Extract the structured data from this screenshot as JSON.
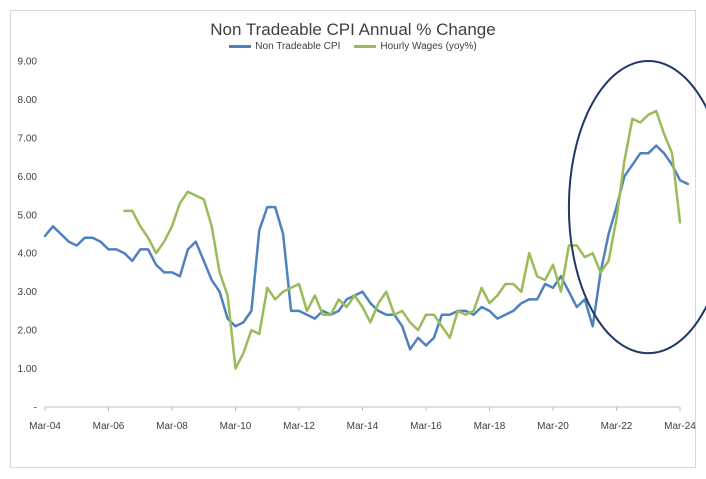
{
  "chart_data": {
    "type": "line",
    "title": "Non Tradeable CPI Annual % Change",
    "xlabel": "",
    "ylabel": "",
    "ylim": [
      0,
      9
    ],
    "grid": false,
    "legend_position": "top-center",
    "y_ticks": [
      "-",
      "1.00",
      "2.00",
      "3.00",
      "4.00",
      "5.00",
      "6.00",
      "7.00",
      "8.00",
      "9.00"
    ],
    "x_ticks": [
      "Mar-04",
      "Mar-06",
      "Mar-08",
      "Mar-10",
      "Mar-12",
      "Mar-14",
      "Mar-16",
      "Mar-18",
      "Mar-20",
      "Mar-22",
      "Mar-24"
    ],
    "x_range": [
      "2004-03",
      "2024-03"
    ],
    "series": [
      {
        "name": "Non Tradeable CPI",
        "color": "#4f81bd",
        "points": [
          [
            "2004-03",
            4.45
          ],
          [
            "2004-06",
            4.7
          ],
          [
            "2004-09",
            4.5
          ],
          [
            "2004-12",
            4.3
          ],
          [
            "2005-03",
            4.2
          ],
          [
            "2005-06",
            4.4
          ],
          [
            "2005-09",
            4.4
          ],
          [
            "2005-12",
            4.3
          ],
          [
            "2006-03",
            4.1
          ],
          [
            "2006-06",
            4.1
          ],
          [
            "2006-09",
            4.0
          ],
          [
            "2006-12",
            3.8
          ],
          [
            "2007-03",
            4.1
          ],
          [
            "2007-06",
            4.1
          ],
          [
            "2007-09",
            3.7
          ],
          [
            "2007-12",
            3.5
          ],
          [
            "2008-03",
            3.5
          ],
          [
            "2008-06",
            3.4
          ],
          [
            "2008-09",
            4.1
          ],
          [
            "2008-12",
            4.3
          ],
          [
            "2009-03",
            3.8
          ],
          [
            "2009-06",
            3.3
          ],
          [
            "2009-09",
            3.0
          ],
          [
            "2009-12",
            2.3
          ],
          [
            "2010-03",
            2.1
          ],
          [
            "2010-06",
            2.2
          ],
          [
            "2010-09",
            2.5
          ],
          [
            "2010-12",
            4.6
          ],
          [
            "2011-03",
            5.2
          ],
          [
            "2011-06",
            5.2
          ],
          [
            "2011-09",
            4.5
          ],
          [
            "2011-12",
            2.5
          ],
          [
            "2012-03",
            2.5
          ],
          [
            "2012-06",
            2.4
          ],
          [
            "2012-09",
            2.3
          ],
          [
            "2012-12",
            2.5
          ],
          [
            "2013-03",
            2.4
          ],
          [
            "2013-06",
            2.5
          ],
          [
            "2013-09",
            2.8
          ],
          [
            "2013-12",
            2.9
          ],
          [
            "2014-03",
            3.0
          ],
          [
            "2014-06",
            2.7
          ],
          [
            "2014-09",
            2.5
          ],
          [
            "2014-12",
            2.4
          ],
          [
            "2015-03",
            2.4
          ],
          [
            "2015-06",
            2.1
          ],
          [
            "2015-09",
            1.5
          ],
          [
            "2015-12",
            1.8
          ],
          [
            "2016-03",
            1.6
          ],
          [
            "2016-06",
            1.8
          ],
          [
            "2016-09",
            2.4
          ],
          [
            "2016-12",
            2.4
          ],
          [
            "2017-03",
            2.5
          ],
          [
            "2017-06",
            2.5
          ],
          [
            "2017-09",
            2.4
          ],
          [
            "2017-12",
            2.6
          ],
          [
            "2018-03",
            2.5
          ],
          [
            "2018-06",
            2.3
          ],
          [
            "2018-09",
            2.4
          ],
          [
            "2018-12",
            2.5
          ],
          [
            "2019-03",
            2.7
          ],
          [
            "2019-06",
            2.8
          ],
          [
            "2019-09",
            2.8
          ],
          [
            "2019-12",
            3.2
          ],
          [
            "2020-03",
            3.1
          ],
          [
            "2020-06",
            3.4
          ],
          [
            "2020-09",
            3.0
          ],
          [
            "2020-12",
            2.6
          ],
          [
            "2021-03",
            2.8
          ],
          [
            "2021-06",
            2.1
          ],
          [
            "2021-09",
            3.5
          ],
          [
            "2021-12",
            4.5
          ],
          [
            "2022-03",
            5.2
          ],
          [
            "2022-06",
            6.0
          ],
          [
            "2022-09",
            6.3
          ],
          [
            "2022-12",
            6.6
          ],
          [
            "2023-03",
            6.6
          ],
          [
            "2023-06",
            6.8
          ],
          [
            "2023-09",
            6.6
          ],
          [
            "2023-12",
            6.3
          ],
          [
            "2024-03",
            5.9
          ],
          [
            "2024-06",
            5.8
          ]
        ]
      },
      {
        "name": "Hourly Wages (yoy%)",
        "color": "#9bbb59",
        "points": [
          [
            "2006-09",
            5.1
          ],
          [
            "2006-12",
            5.1
          ],
          [
            "2007-03",
            4.7
          ],
          [
            "2007-06",
            4.4
          ],
          [
            "2007-09",
            4.0
          ],
          [
            "2007-12",
            4.3
          ],
          [
            "2008-03",
            4.7
          ],
          [
            "2008-06",
            5.3
          ],
          [
            "2008-09",
            5.6
          ],
          [
            "2008-12",
            5.5
          ],
          [
            "2009-03",
            5.4
          ],
          [
            "2009-06",
            4.7
          ],
          [
            "2009-09",
            3.5
          ],
          [
            "2009-12",
            2.9
          ],
          [
            "2010-03",
            1.0
          ],
          [
            "2010-06",
            1.4
          ],
          [
            "2010-09",
            2.0
          ],
          [
            "2010-12",
            1.9
          ],
          [
            "2011-03",
            3.1
          ],
          [
            "2011-06",
            2.8
          ],
          [
            "2011-09",
            3.0
          ],
          [
            "2011-12",
            3.1
          ],
          [
            "2012-03",
            3.2
          ],
          [
            "2012-06",
            2.5
          ],
          [
            "2012-09",
            2.9
          ],
          [
            "2012-12",
            2.4
          ],
          [
            "2013-03",
            2.4
          ],
          [
            "2013-06",
            2.8
          ],
          [
            "2013-09",
            2.6
          ],
          [
            "2013-12",
            2.9
          ],
          [
            "2014-03",
            2.6
          ],
          [
            "2014-06",
            2.2
          ],
          [
            "2014-09",
            2.7
          ],
          [
            "2014-12",
            3.0
          ],
          [
            "2015-03",
            2.4
          ],
          [
            "2015-06",
            2.5
          ],
          [
            "2015-09",
            2.2
          ],
          [
            "2015-12",
            2.0
          ],
          [
            "2016-03",
            2.4
          ],
          [
            "2016-06",
            2.4
          ],
          [
            "2016-09",
            2.1
          ],
          [
            "2016-12",
            1.8
          ],
          [
            "2017-03",
            2.5
          ],
          [
            "2017-06",
            2.4
          ],
          [
            "2017-09",
            2.5
          ],
          [
            "2017-12",
            3.1
          ],
          [
            "2018-03",
            2.7
          ],
          [
            "2018-06",
            2.9
          ],
          [
            "2018-09",
            3.2
          ],
          [
            "2018-12",
            3.2
          ],
          [
            "2019-03",
            3.0
          ],
          [
            "2019-06",
            4.0
          ],
          [
            "2019-09",
            3.4
          ],
          [
            "2019-12",
            3.3
          ],
          [
            "2020-03",
            3.7
          ],
          [
            "2020-06",
            3.0
          ],
          [
            "2020-09",
            4.2
          ],
          [
            "2020-12",
            4.2
          ],
          [
            "2021-03",
            3.9
          ],
          [
            "2021-06",
            4.0
          ],
          [
            "2021-09",
            3.5
          ],
          [
            "2021-12",
            3.8
          ],
          [
            "2022-03",
            4.9
          ],
          [
            "2022-06",
            6.4
          ],
          [
            "2022-09",
            7.5
          ],
          [
            "2022-12",
            7.4
          ],
          [
            "2023-03",
            7.6
          ],
          [
            "2023-06",
            7.7
          ],
          [
            "2023-09",
            7.1
          ],
          [
            "2023-12",
            6.6
          ],
          [
            "2024-03",
            4.8
          ]
        ]
      }
    ],
    "annotations": [
      {
        "type": "ellipse",
        "color": "#1f3864",
        "center": [
          "2023-03",
          5.2
        ],
        "radius_years": 2.5,
        "radius_value": 3.8
      }
    ]
  }
}
